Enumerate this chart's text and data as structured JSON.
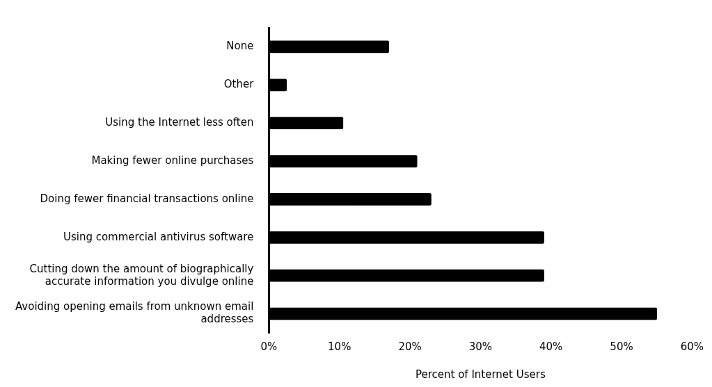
{
  "chart_data": {
    "type": "bar",
    "orientation": "horizontal",
    "xlabel": "Percent of Internet Users",
    "categories": [
      "None",
      "Other",
      "Using the Internet less often",
      "Making fewer online purchases",
      "Doing fewer financial transactions online",
      "Using commercial antivirus software",
      "Cutting down the amount of biographically accurate information you divulge online",
      "Avoiding opening emails from unknown email addresses"
    ],
    "values": [
      17,
      2.5,
      10.5,
      21,
      23,
      39,
      39,
      55
    ],
    "color": "#000000",
    "xlim": [
      0,
      60
    ],
    "xticks": [
      {
        "value": 0,
        "label": "0%"
      },
      {
        "value": 10,
        "label": "10%"
      },
      {
        "value": 20,
        "label": "20%"
      },
      {
        "value": 30,
        "label": "30%"
      },
      {
        "value": 40,
        "label": "40%"
      },
      {
        "value": 50,
        "label": "50%"
      },
      {
        "value": 60,
        "label": "60%"
      }
    ],
    "grid": false,
    "legend": false
  }
}
